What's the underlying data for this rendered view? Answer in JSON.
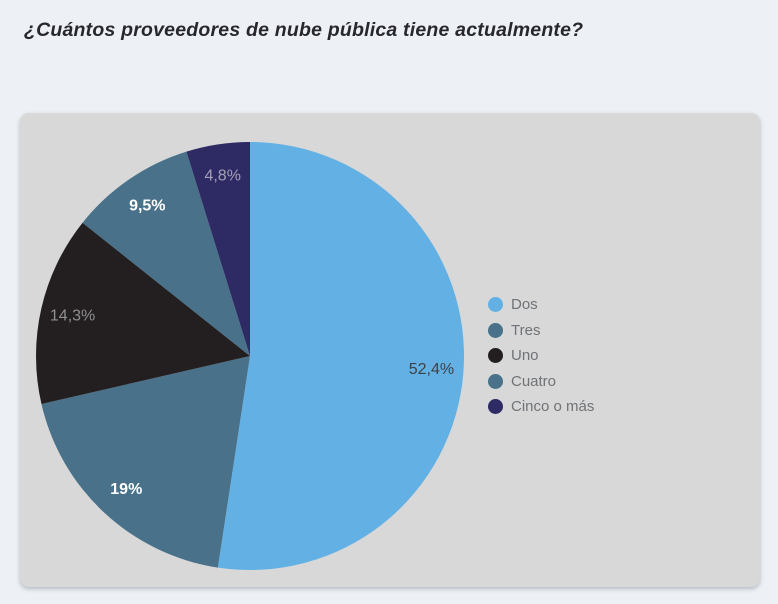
{
  "page": {
    "title": "¿Cuántos proveedores de nube pública tiene actualmente?",
    "background_color": "#edf1f5",
    "card_color": "#d8d8d8"
  },
  "chart_data": {
    "type": "pie",
    "title": "¿Cuántos proveedores de nube pública tiene actualmente?",
    "categories": [
      "Dos",
      "Tres",
      "Uno",
      "Cuatro",
      "Cinco o más"
    ],
    "values": [
      52.4,
      19,
      14.3,
      9.5,
      4.8
    ],
    "slice_labels": [
      "52,4%",
      "19%",
      "14,3%",
      "9,5%",
      "4,8%"
    ],
    "colors": [
      "#63b1e4",
      "#497189",
      "#231f20",
      "#497189",
      "#2e2a63"
    ],
    "slice_label_colors": [
      "#3f4045",
      "#ffffff",
      "#8f8f92",
      "#ffffff",
      "#a5a0b8"
    ],
    "slice_label_bold": [
      false,
      true,
      false,
      true,
      false
    ],
    "start_angle_deg": 0,
    "direction": "clockwise",
    "legend_position": "right-middle",
    "legend_text_color": "#6f7377"
  }
}
